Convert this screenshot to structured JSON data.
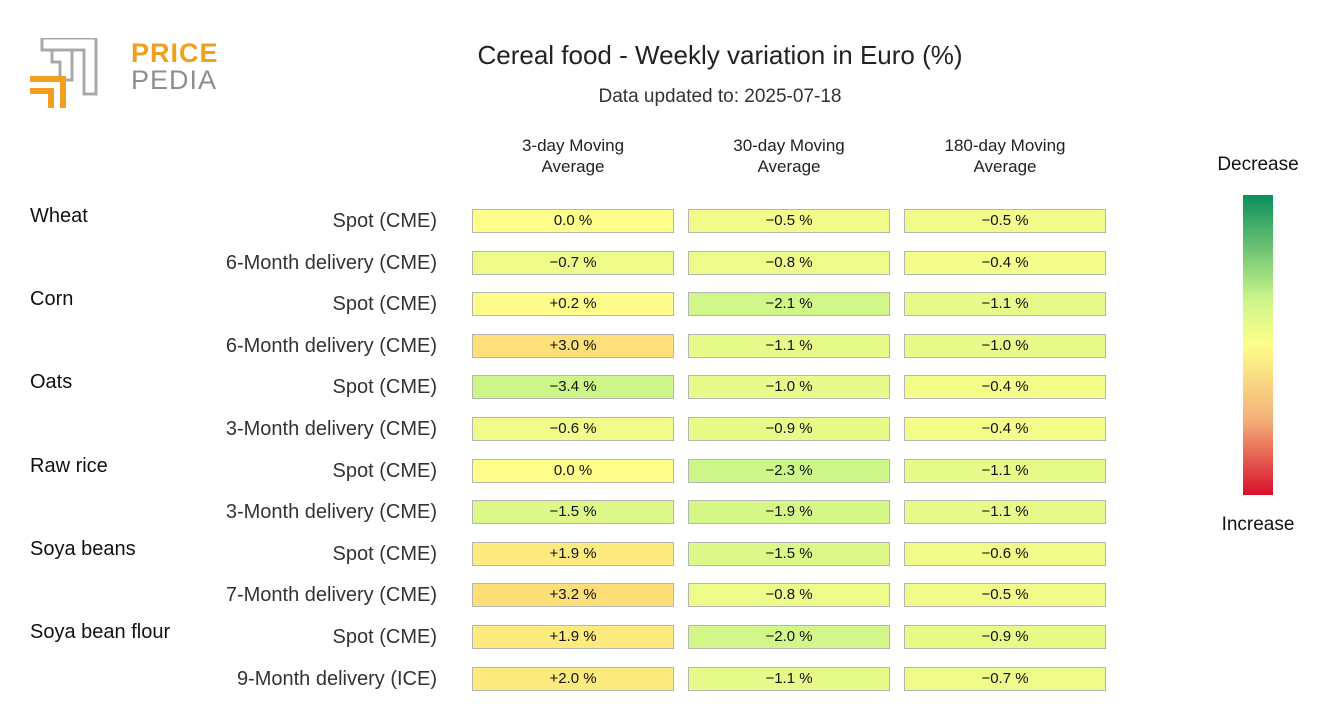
{
  "logo": {
    "line1": "PRICE",
    "line2": "PEDIA"
  },
  "title": "Cereal food - Weekly variation in Euro (%)",
  "subtitle": "Data updated to: 2025-07-18",
  "columns": [
    "3-day Moving\nAverage",
    "30-day Moving\nAverage",
    "180-day Moving\nAverage"
  ],
  "legend": {
    "top": "Decrease",
    "bottom": "Increase"
  },
  "colors": {
    "decrease": "#0a8f5c",
    "neutral": "#fdfd8a",
    "increase": "#d7102a"
  },
  "chart_data": {
    "type": "table",
    "title": "Cereal food - Weekly variation in Euro (%)",
    "groups": [
      {
        "name": "Wheat",
        "rows": [
          {
            "label": "Spot (CME)",
            "values": [
              0.0,
              -0.5,
              -0.5
            ],
            "display": [
              "0.0 %",
              "−0.5 %",
              "−0.5 %"
            ]
          },
          {
            "label": "6-Month delivery (CME)",
            "values": [
              -0.7,
              -0.8,
              -0.4
            ],
            "display": [
              "−0.7 %",
              "−0.8 %",
              "−0.4 %"
            ]
          }
        ]
      },
      {
        "name": "Corn",
        "rows": [
          {
            "label": "Spot (CME)",
            "values": [
              0.2,
              -2.1,
              -1.1
            ],
            "display": [
              "+0.2 %",
              "−2.1 %",
              "−1.1 %"
            ]
          },
          {
            "label": "6-Month delivery (CME)",
            "values": [
              3.0,
              -1.1,
              -1.0
            ],
            "display": [
              "+3.0 %",
              "−1.1 %",
              "−1.0 %"
            ]
          }
        ]
      },
      {
        "name": "Oats",
        "rows": [
          {
            "label": "Spot (CME)",
            "values": [
              -3.4,
              -1.0,
              -0.4
            ],
            "display": [
              "−3.4 %",
              "−1.0 %",
              "−0.4 %"
            ]
          },
          {
            "label": "3-Month delivery (CME)",
            "values": [
              -0.6,
              -0.9,
              -0.4
            ],
            "display": [
              "−0.6 %",
              "−0.9 %",
              "−0.4 %"
            ]
          }
        ]
      },
      {
        "name": "Raw rice",
        "rows": [
          {
            "label": "Spot (CME)",
            "values": [
              0.0,
              -2.3,
              -1.1
            ],
            "display": [
              "0.0 %",
              "−2.3 %",
              "−1.1 %"
            ]
          },
          {
            "label": "3-Month delivery (CME)",
            "values": [
              -1.5,
              -1.9,
              -1.1
            ],
            "display": [
              "−1.5 %",
              "−1.9 %",
              "−1.1 %"
            ]
          }
        ]
      },
      {
        "name": "Soya beans",
        "rows": [
          {
            "label": "Spot (CME)",
            "values": [
              1.9,
              -1.5,
              -0.6
            ],
            "display": [
              "+1.9 %",
              "−1.5 %",
              "−0.6 %"
            ]
          },
          {
            "label": "7-Month delivery (CME)",
            "values": [
              3.2,
              -0.8,
              -0.5
            ],
            "display": [
              "+3.2 %",
              "−0.8 %",
              "−0.5 %"
            ]
          }
        ]
      },
      {
        "name": "Soya bean flour",
        "rows": [
          {
            "label": "Spot (CME)",
            "values": [
              1.9,
              -2.0,
              -0.9
            ],
            "display": [
              "+1.9 %",
              "−2.0 %",
              "−0.9 %"
            ]
          },
          {
            "label": "9-Month delivery (ICE)",
            "values": [
              2.0,
              -1.1,
              -0.7
            ],
            "display": [
              "+2.0 %",
              "−1.1 %",
              "−0.7 %"
            ]
          }
        ]
      }
    ]
  }
}
